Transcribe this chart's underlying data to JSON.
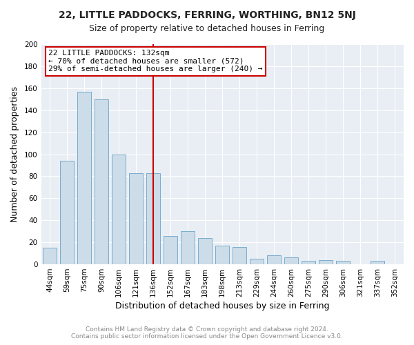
{
  "title1": "22, LITTLE PADDOCKS, FERRING, WORTHING, BN12 5NJ",
  "title2": "Size of property relative to detached houses in Ferring",
  "xlabel": "Distribution of detached houses by size in Ferring",
  "ylabel": "Number of detached properties",
  "bar_labels": [
    "44sqm",
    "59sqm",
    "75sqm",
    "90sqm",
    "106sqm",
    "121sqm",
    "136sqm",
    "152sqm",
    "167sqm",
    "183sqm",
    "198sqm",
    "213sqm",
    "229sqm",
    "244sqm",
    "260sqm",
    "275sqm",
    "290sqm",
    "306sqm",
    "321sqm",
    "337sqm",
    "352sqm"
  ],
  "bar_values": [
    15,
    94,
    157,
    150,
    100,
    83,
    83,
    26,
    30,
    24,
    17,
    16,
    5,
    8,
    6,
    3,
    4,
    3,
    0,
    3,
    0
  ],
  "bar_color": "#ccdce8",
  "bar_edge_color": "#7aaccc",
  "vline_x_index": 6,
  "vline_color": "#cc0000",
  "annotation_title": "22 LITTLE PADDOCKS: 132sqm",
  "annotation_line1": "← 70% of detached houses are smaller (572)",
  "annotation_line2": "29% of semi-detached houses are larger (240) →",
  "annotation_box_facecolor": "#ffffff",
  "annotation_box_edgecolor": "#cc0000",
  "ylim": [
    0,
    200
  ],
  "yticks": [
    0,
    20,
    40,
    60,
    80,
    100,
    120,
    140,
    160,
    180,
    200
  ],
  "footer1": "Contains HM Land Registry data © Crown copyright and database right 2024.",
  "footer2": "Contains public sector information licensed under the Open Government Licence v3.0.",
  "bg_color": "#ffffff",
  "plot_bg_color": "#e8eef4",
  "grid_color": "#ffffff",
  "title1_fontsize": 10,
  "title2_fontsize": 9,
  "axis_label_fontsize": 9,
  "tick_fontsize": 7.5,
  "footer_fontsize": 6.5,
  "annotation_fontsize": 8
}
